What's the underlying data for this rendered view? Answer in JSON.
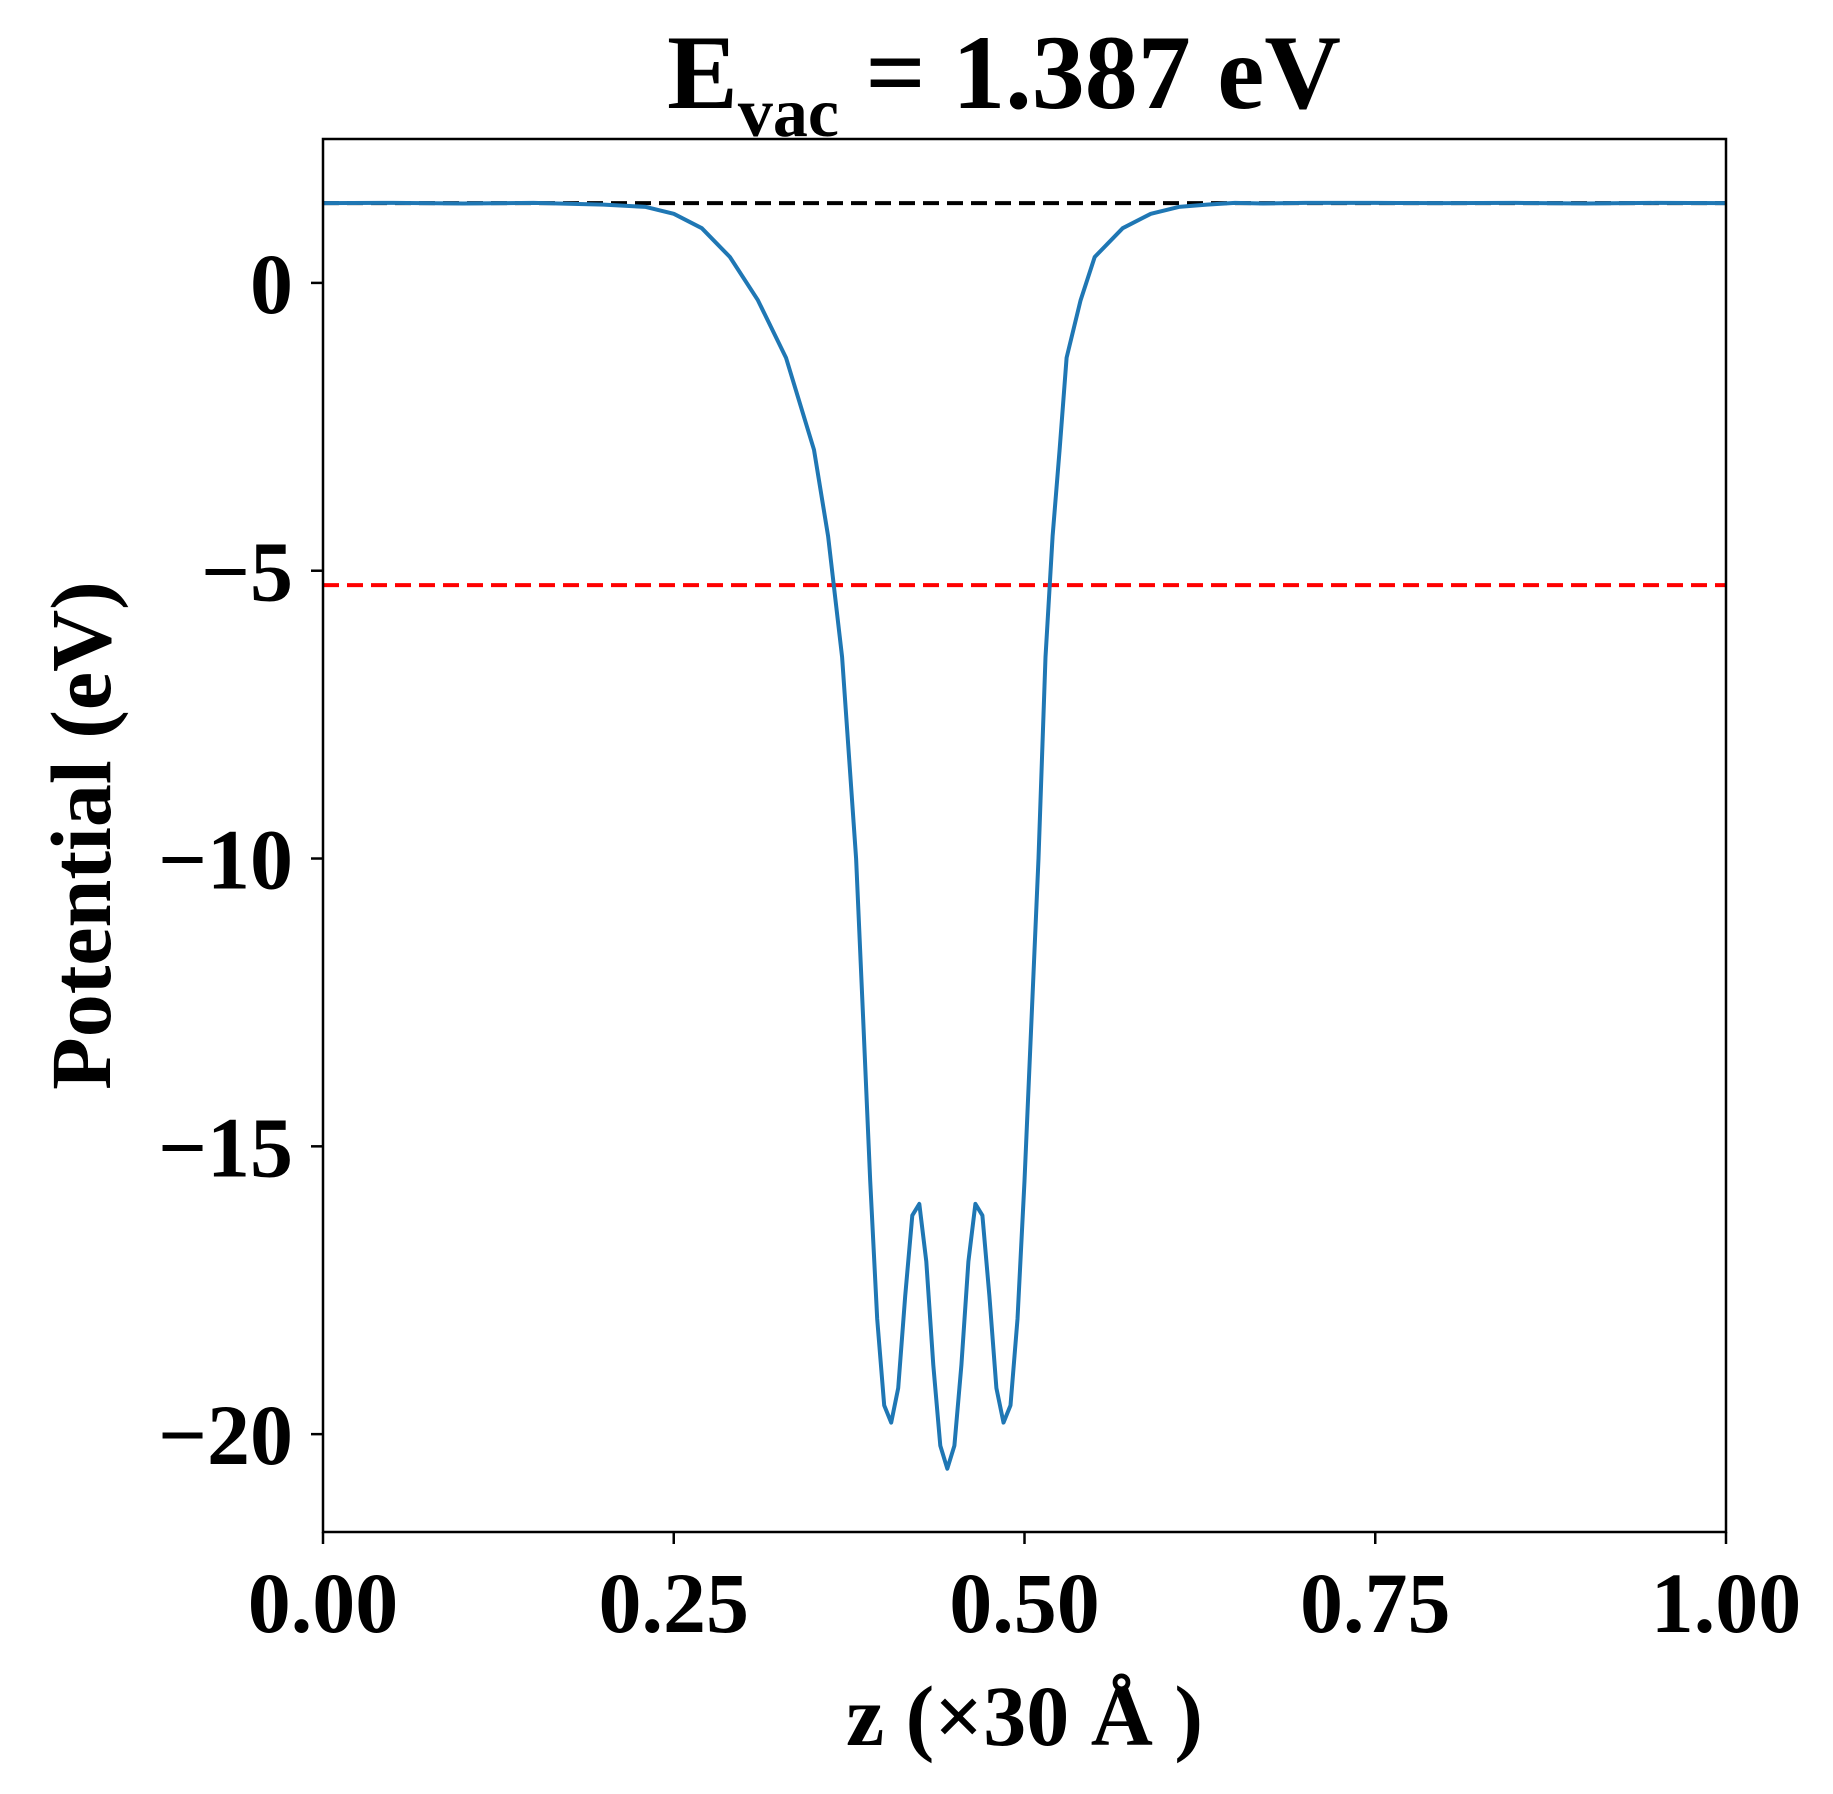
{
  "chart_data": {
    "type": "line",
    "title_main": "E",
    "title_sub": "vac",
    "title_rest": " = 1.387 eV",
    "xlabel": "z (×30 Å )",
    "ylabel": "Potential (eV)",
    "xlim": [
      0.0,
      1.0
    ],
    "ylim": [
      -21.7,
      2.5
    ],
    "xticks": [
      0.0,
      0.25,
      0.5,
      0.75,
      1.0
    ],
    "xtick_labels": [
      "0.00",
      "0.25",
      "0.50",
      "0.75",
      "1.00"
    ],
    "yticks": [
      0,
      -5,
      -10,
      -15,
      -20
    ],
    "ytick_labels": [
      "0",
      "−5",
      "−10",
      "−15",
      "−20"
    ],
    "grid": false,
    "reference_lines": [
      {
        "y": 1.387,
        "color": "#000000",
        "style": "dashed"
      },
      {
        "y": -5.25,
        "color": "#ff0000",
        "style": "dashed"
      }
    ],
    "series": [
      {
        "color": "#1f77b4",
        "x": [
          0.0,
          0.05,
          0.1,
          0.15,
          0.2,
          0.23,
          0.25,
          0.27,
          0.29,
          0.31,
          0.33,
          0.35,
          0.36,
          0.37,
          0.38,
          0.385,
          0.39,
          0.395,
          0.4,
          0.405,
          0.41,
          0.415,
          0.42,
          0.425,
          0.43,
          0.435,
          0.44,
          0.445,
          0.45,
          0.455,
          0.46,
          0.465,
          0.47,
          0.475,
          0.48,
          0.485,
          0.49,
          0.495,
          0.5,
          0.505,
          0.51,
          0.515,
          0.52,
          0.525,
          0.53,
          0.54,
          0.55,
          0.57,
          0.59,
          0.61,
          0.63,
          0.65,
          0.67,
          0.7,
          0.75,
          0.8,
          0.85,
          0.9,
          0.95,
          1.0
        ],
        "y": [
          1.387,
          1.39,
          1.38,
          1.39,
          1.36,
          1.32,
          1.2,
          0.95,
          0.45,
          -0.3,
          -1.3,
          -2.9,
          -4.4,
          -6.5,
          -10.0,
          -12.8,
          -15.6,
          -18.0,
          -19.5,
          -19.8,
          -19.2,
          -17.6,
          -16.2,
          -16.0,
          -17.0,
          -18.8,
          -20.2,
          -20.6,
          -20.2,
          -18.8,
          -17.0,
          -16.0,
          -16.2,
          -17.6,
          -19.2,
          -19.8,
          -19.5,
          -18.0,
          -15.6,
          -12.8,
          -10.0,
          -6.5,
          -4.4,
          -2.9,
          -1.3,
          -0.3,
          0.45,
          0.95,
          1.2,
          1.32,
          1.36,
          1.39,
          1.38,
          1.39,
          1.39,
          1.387,
          1.39,
          1.38,
          1.39,
          1.387
        ]
      }
    ]
  }
}
